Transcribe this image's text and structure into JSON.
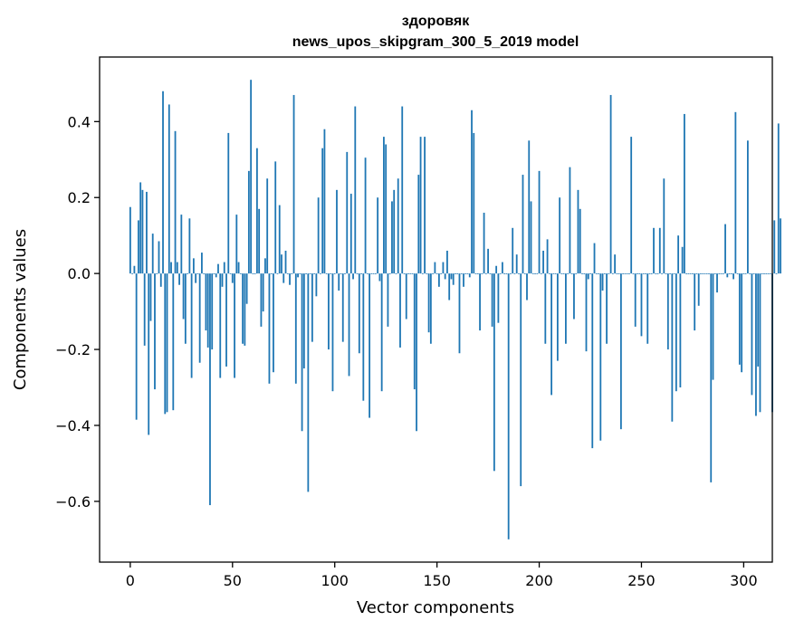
{
  "chart_data": {
    "type": "bar",
    "title": "здоровяк",
    "subtitle": "news_upos_skipgram_300_5_2019 model",
    "xlabel": "Vector components",
    "ylabel": "Components values",
    "xlim": [
      -15,
      314
    ],
    "ylim": [
      -0.76,
      0.57
    ],
    "xticks": [
      0,
      50,
      100,
      150,
      200,
      250,
      300
    ],
    "xtick_labels": [
      "0",
      "50",
      "100",
      "150",
      "200",
      "250",
      "300"
    ],
    "yticks": [
      -0.6,
      -0.4,
      -0.2,
      0.0,
      0.2,
      0.4
    ],
    "ytick_labels": [
      "−0.6",
      "−0.4",
      "−0.2",
      "0.0",
      "0.2",
      "0.4"
    ],
    "bar_color": "#1f77b4",
    "values": [
      0.175,
      0.0,
      0.02,
      -0.385,
      0.14,
      0.24,
      0.22,
      -0.19,
      0.215,
      -0.425,
      -0.125,
      0.105,
      -0.305,
      0.0,
      0.085,
      -0.035,
      0.48,
      -0.37,
      -0.365,
      0.445,
      0.03,
      -0.36,
      0.375,
      0.03,
      -0.03,
      0.155,
      -0.12,
      -0.185,
      0.0,
      0.145,
      -0.275,
      0.04,
      -0.025,
      0.0,
      -0.235,
      0.055,
      0.0,
      -0.15,
      -0.195,
      -0.61,
      -0.2,
      0.0,
      -0.01,
      0.025,
      -0.275,
      -0.035,
      0.03,
      -0.245,
      0.37,
      0.0,
      -0.025,
      -0.275,
      0.155,
      0.03,
      0.0,
      -0.185,
      -0.19,
      -0.08,
      0.27,
      0.51,
      0.0,
      0.0,
      0.33,
      0.17,
      -0.14,
      -0.1,
      0.04,
      0.25,
      -0.29,
      0.0,
      -0.26,
      0.295,
      0.0,
      0.18,
      0.05,
      -0.025,
      0.06,
      0.0,
      -0.03,
      0.0,
      0.47,
      -0.29,
      -0.01,
      0.0,
      -0.415,
      -0.25,
      0.0,
      -0.575,
      0.0,
      -0.18,
      0.0,
      -0.06,
      0.2,
      0.0,
      0.33,
      0.38,
      0.0,
      -0.2,
      0.0,
      -0.31,
      0.0,
      0.22,
      -0.045,
      0.0,
      -0.18,
      0.0,
      0.32,
      -0.27,
      0.21,
      -0.015,
      0.44,
      0.0,
      -0.21,
      0.0,
      -0.335,
      0.305,
      0.0,
      -0.38,
      0.0,
      0.0,
      0.0,
      0.2,
      -0.02,
      -0.31,
      0.36,
      0.34,
      -0.14,
      0.0,
      0.19,
      0.22,
      0.0,
      0.25,
      -0.195,
      0.44,
      0.0,
      -0.12,
      0.0,
      0.0,
      0.0,
      -0.305,
      -0.415,
      0.26,
      0.36,
      0.0,
      0.36,
      0.0,
      -0.155,
      -0.185,
      0.0,
      0.03,
      0.0,
      -0.035,
      0.0,
      0.03,
      -0.015,
      0.06,
      -0.07,
      -0.015,
      -0.03,
      0.0,
      0.0,
      -0.21,
      0.0,
      -0.035,
      0.0,
      0.0,
      -0.01,
      0.43,
      0.37,
      0.0,
      0.0,
      -0.15,
      0.0,
      0.16,
      0.0,
      0.065,
      0.0,
      -0.14,
      -0.52,
      0.02,
      -0.13,
      0.0,
      0.03,
      0.0,
      0.0,
      -0.7,
      0.0,
      0.12,
      0.0,
      0.05,
      0.0,
      -0.56,
      0.26,
      0.0,
      -0.07,
      0.35,
      0.19,
      0.0,
      0.0,
      0.0,
      0.27,
      0.0,
      0.06,
      -0.185,
      0.09,
      0.0,
      -0.32,
      0.0,
      0.0,
      -0.23,
      0.2,
      0.0,
      0.0,
      -0.185,
      0.0,
      0.28,
      0.0,
      -0.12,
      0.0,
      0.22,
      0.17,
      0.0,
      0.0,
      -0.205,
      -0.015,
      0.0,
      -0.46,
      0.08,
      0.0,
      0.0,
      -0.44,
      -0.045,
      0.0,
      -0.185,
      0.0,
      0.47,
      0.0,
      0.05,
      0.0,
      0.0,
      -0.41,
      0.0,
      0.0,
      0.0,
      0.0,
      0.36,
      0.0,
      -0.14,
      0.0,
      0.0,
      -0.165,
      0.0,
      0.0,
      -0.185,
      0.0,
      0.0,
      0.12,
      0.0,
      0.0,
      0.12,
      0.0,
      0.25,
      0.0,
      -0.2,
      0.0,
      -0.39,
      0.0,
      -0.31,
      0.1,
      -0.3,
      0.07,
      0.42,
      0.0,
      0.0,
      0.0,
      0.0,
      -0.15,
      0.0,
      -0.085,
      0.0,
      0.0,
      0.0,
      0.0,
      0.0,
      -0.55,
      -0.28,
      0.0,
      -0.05,
      0.0,
      0.0,
      0.0,
      0.13,
      -0.01,
      0.0,
      0.0,
      -0.015,
      0.425,
      0.0,
      -0.24,
      -0.26,
      0.0,
      0.0,
      0.35,
      0.0,
      -0.32,
      0.0,
      -0.375,
      -0.245,
      -0.365,
      0.0,
      0.0,
      0.0,
      0.0,
      0.0,
      -0.365,
      0.14,
      0.0,
      0.395,
      0.145
    ]
  }
}
